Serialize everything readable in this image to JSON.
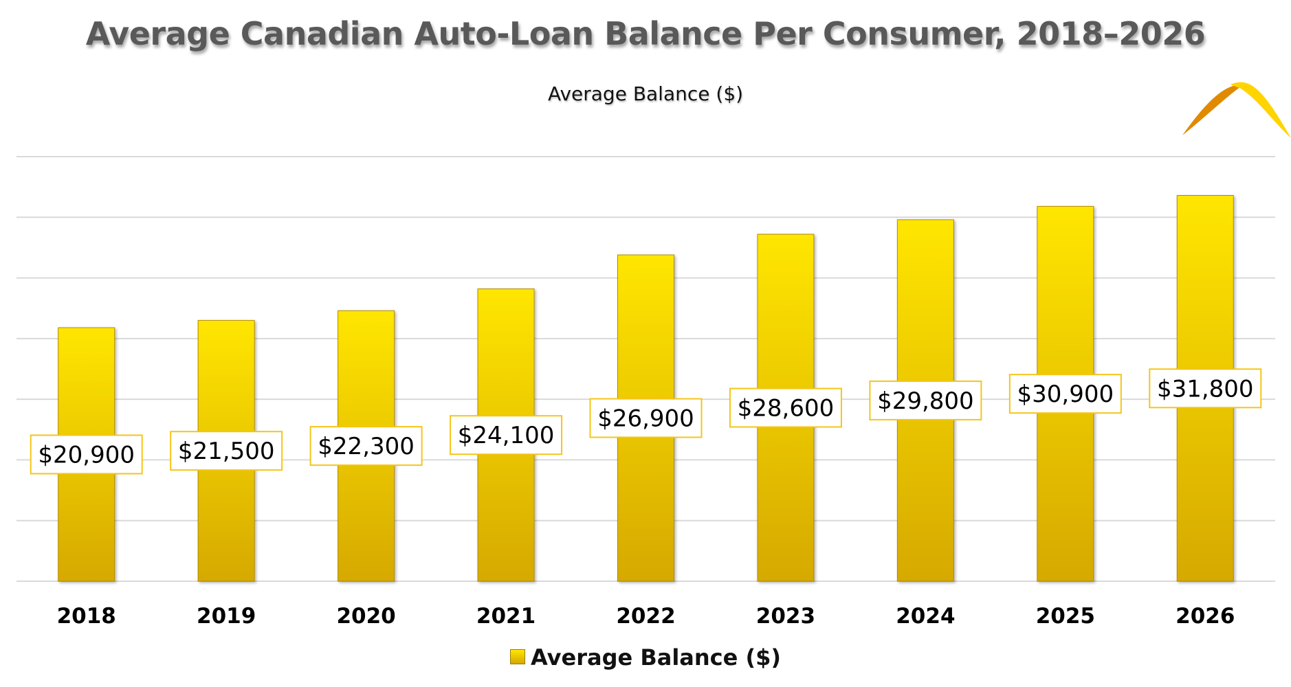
{
  "chart_data": {
    "type": "bar",
    "title": "Average Canadian Auto-Loan Balance Per Consumer, 2018–2026",
    "subtitle": "Average Balance ($)",
    "categories": [
      "2018",
      "2019",
      "2020",
      "2021",
      "2022",
      "2023",
      "2024",
      "2025",
      "2026"
    ],
    "series": [
      {
        "name": "Average Balance ($)",
        "values": [
          20900,
          21500,
          22300,
          24100,
          26900,
          28600,
          29800,
          30900,
          31800
        ],
        "labels": [
          "$20,900",
          "$21,500",
          "$22,300",
          "$24,100",
          "$26,900",
          "$28,600",
          "$29,800",
          "$30,900",
          "$31,800"
        ]
      }
    ],
    "ylim": [
      0,
      35000
    ],
    "ytick_step": 5000,
    "y_axis_labels_visible": false,
    "grid": true,
    "legend_placement": "bottom",
    "colors": {
      "bar_top": "#FFE600",
      "bar_bottom": "#D6A900",
      "label_border": "#F5C518",
      "grid": "#D9D9D9",
      "title": "#595959"
    }
  }
}
